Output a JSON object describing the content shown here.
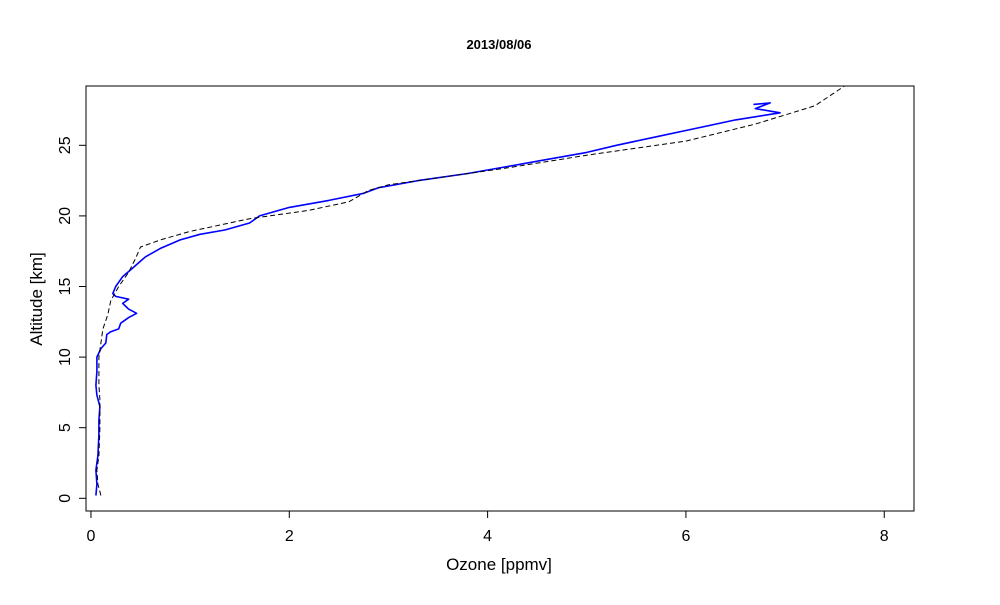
{
  "chart_data": {
    "type": "line",
    "title": "2013/08/06",
    "xlabel": "Ozone [ppmv]",
    "ylabel": "Altitude [km]",
    "xlim": [
      -0.05,
      8.3
    ],
    "ylim": [
      -0.9,
      29.2
    ],
    "x_ticks": [
      0,
      2,
      4,
      6,
      8
    ],
    "y_ticks": [
      0,
      5,
      10,
      15,
      20,
      25
    ],
    "grid": false,
    "colors": {
      "measured": "#0000ff",
      "reference": "#000000"
    },
    "series": [
      {
        "style": "solid",
        "points": [
          [
            0.05,
            0.2
          ],
          [
            0.06,
            1.0
          ],
          [
            0.05,
            2.0
          ],
          [
            0.07,
            3.0
          ],
          [
            0.08,
            4.5
          ],
          [
            0.08,
            5.5
          ],
          [
            0.09,
            6.5
          ],
          [
            0.06,
            7.3
          ],
          [
            0.05,
            8.0
          ],
          [
            0.06,
            9.0
          ],
          [
            0.06,
            10.0
          ],
          [
            0.1,
            10.6
          ],
          [
            0.15,
            11.0
          ],
          [
            0.16,
            11.6
          ],
          [
            0.2,
            11.8
          ],
          [
            0.28,
            12.0
          ],
          [
            0.3,
            12.4
          ],
          [
            0.38,
            12.8
          ],
          [
            0.46,
            13.1
          ],
          [
            0.38,
            13.4
          ],
          [
            0.32,
            13.8
          ],
          [
            0.38,
            14.1
          ],
          [
            0.25,
            14.3
          ],
          [
            0.22,
            14.5
          ],
          [
            0.25,
            15.0
          ],
          [
            0.32,
            15.7
          ],
          [
            0.42,
            16.3
          ],
          [
            0.5,
            16.8
          ],
          [
            0.55,
            17.1
          ],
          [
            0.7,
            17.7
          ],
          [
            0.9,
            18.3
          ],
          [
            1.1,
            18.7
          ],
          [
            1.35,
            19.0
          ],
          [
            1.6,
            19.5
          ],
          [
            1.7,
            20.0
          ],
          [
            2.0,
            20.6
          ],
          [
            2.4,
            21.1
          ],
          [
            2.75,
            21.6
          ],
          [
            2.9,
            22.0
          ],
          [
            3.3,
            22.5
          ],
          [
            3.8,
            23.0
          ],
          [
            4.2,
            23.5
          ],
          [
            4.6,
            24.0
          ],
          [
            5.0,
            24.5
          ],
          [
            5.3,
            25.0
          ],
          [
            5.7,
            25.6
          ],
          [
            6.1,
            26.2
          ],
          [
            6.5,
            26.8
          ],
          [
            6.95,
            27.3
          ],
          [
            6.7,
            27.6
          ],
          [
            6.85,
            28.0
          ],
          [
            6.68,
            27.9
          ]
        ]
      },
      {
        "style": "dashed",
        "points": [
          [
            0.1,
            0.2
          ],
          [
            0.07,
            1.0
          ],
          [
            0.06,
            2.0
          ],
          [
            0.08,
            3.0
          ],
          [
            0.09,
            5.0
          ],
          [
            0.09,
            7.0
          ],
          [
            0.08,
            8.0
          ],
          [
            0.08,
            9.0
          ],
          [
            0.08,
            10.0
          ],
          [
            0.1,
            11.0
          ],
          [
            0.12,
            12.0
          ],
          [
            0.17,
            13.0
          ],
          [
            0.2,
            14.0
          ],
          [
            0.28,
            15.0
          ],
          [
            0.38,
            16.0
          ],
          [
            0.45,
            17.0
          ],
          [
            0.5,
            17.8
          ],
          [
            0.7,
            18.3
          ],
          [
            1.0,
            18.9
          ],
          [
            1.6,
            19.8
          ],
          [
            2.2,
            20.4
          ],
          [
            2.6,
            21.0
          ],
          [
            2.8,
            21.8
          ],
          [
            3.0,
            22.2
          ],
          [
            3.5,
            22.7
          ],
          [
            4.2,
            23.4
          ],
          [
            5.0,
            24.3
          ],
          [
            6.0,
            25.3
          ],
          [
            6.7,
            26.5
          ],
          [
            7.3,
            27.8
          ],
          [
            7.6,
            29.2
          ]
        ]
      }
    ]
  }
}
